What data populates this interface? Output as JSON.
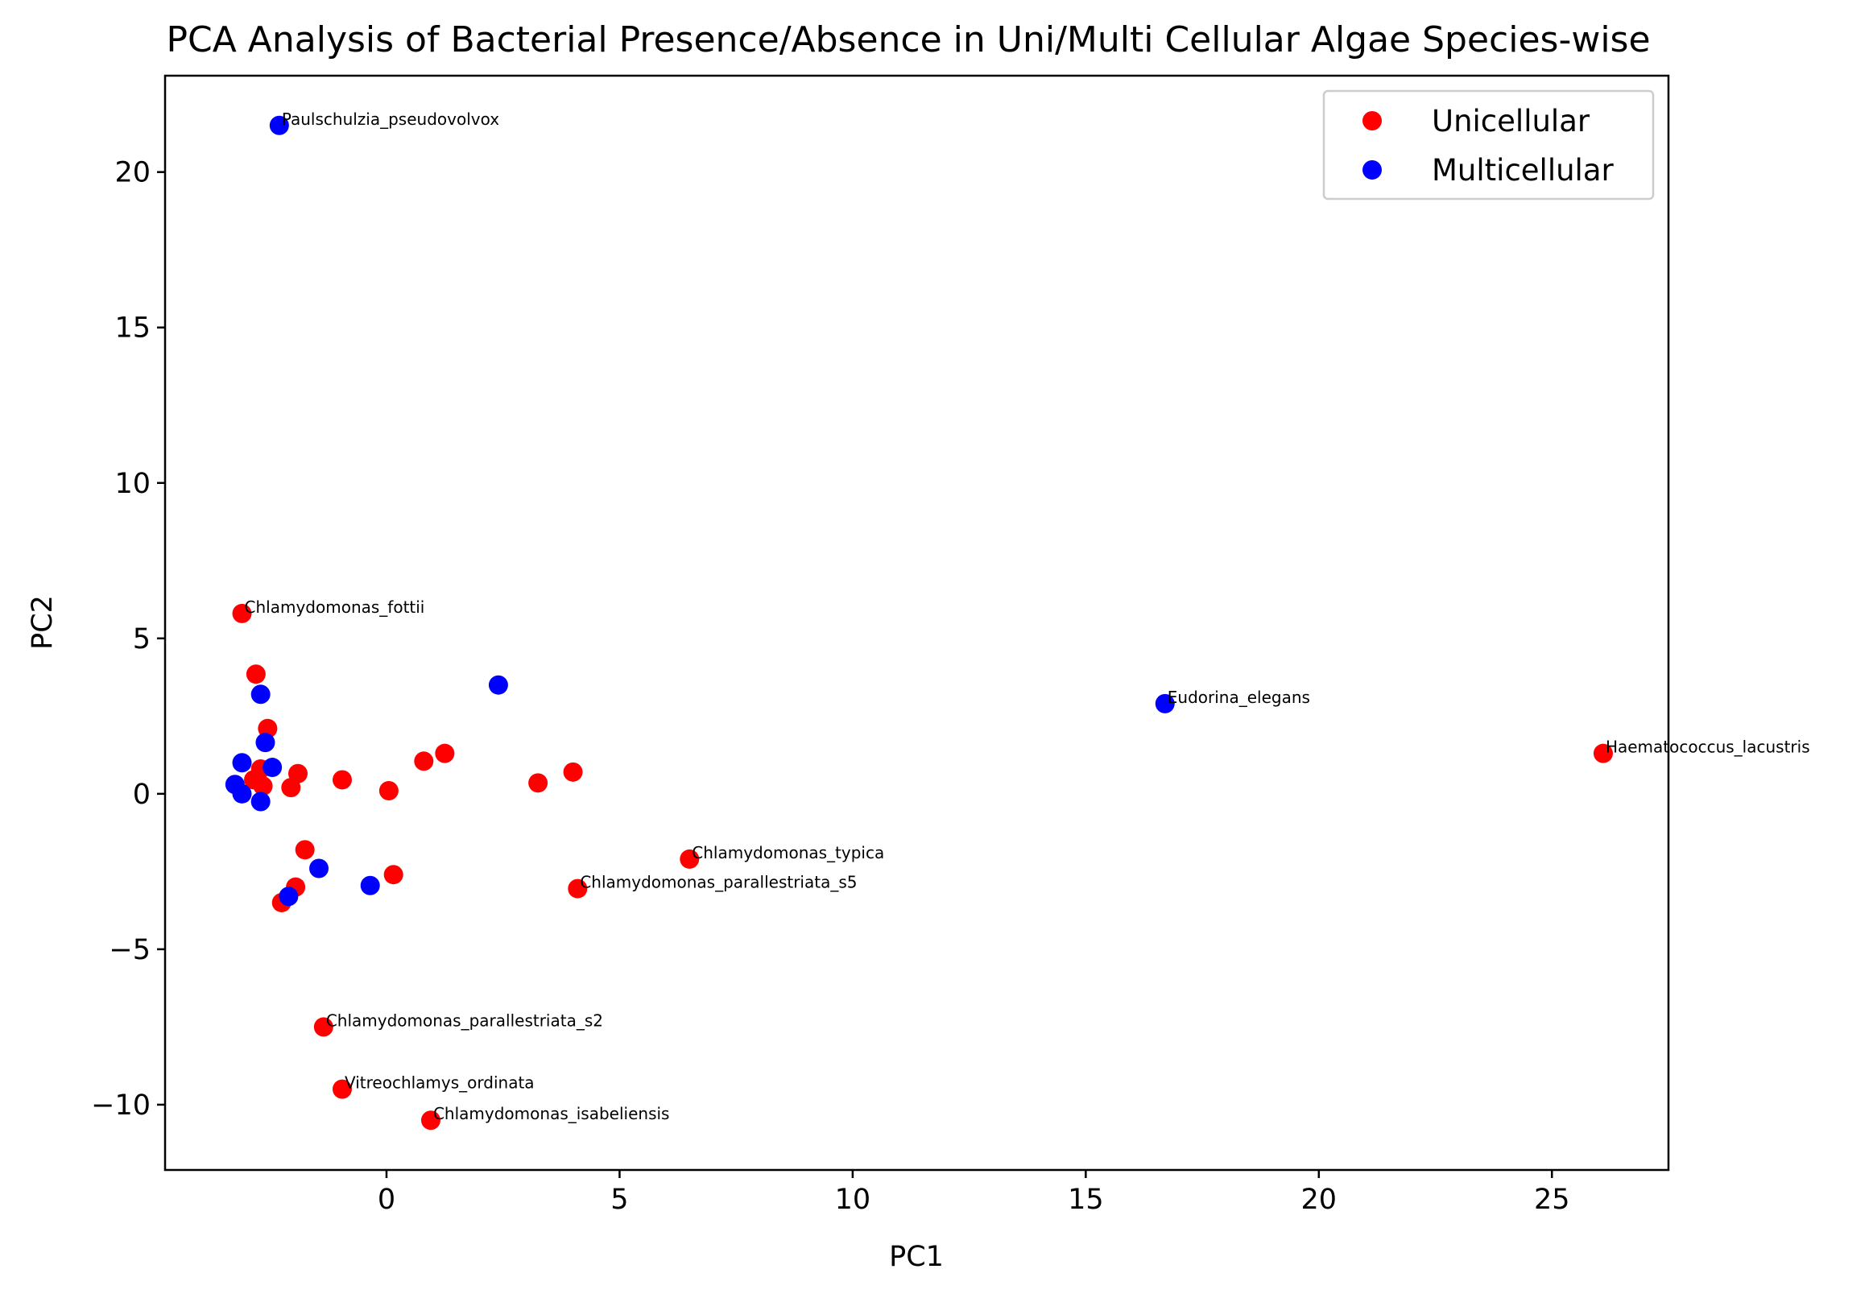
{
  "chart_data": {
    "type": "scatter",
    "title": "PCA Analysis of Bacterial Presence/Absence in Uni/Multi Cellular Algae Species-wise",
    "xlabel": "PC1",
    "ylabel": "PC2",
    "xlim": [
      -4.75,
      27.5
    ],
    "ylim": [
      -12.1,
      23.1
    ],
    "xticks": [
      0,
      5,
      10,
      15,
      20,
      25
    ],
    "yticks": [
      -10,
      -5,
      0,
      5,
      10,
      15,
      20
    ],
    "xtick_labels": [
      "0",
      "5",
      "10",
      "15",
      "20",
      "25"
    ],
    "ytick_labels": [
      "−10",
      "−5",
      "0",
      "5",
      "10",
      "15",
      "20"
    ],
    "grid": false,
    "legend_position": "top-right",
    "series": [
      {
        "name": "Unicellular",
        "color": "#ff0000",
        "points": [
          {
            "x": -3.1,
            "y": 5.8,
            "label": "Chlamydomonas_fottii"
          },
          {
            "x": -2.8,
            "y": 3.85
          },
          {
            "x": -2.55,
            "y": 2.1
          },
          {
            "x": -2.7,
            "y": 0.8
          },
          {
            "x": -2.85,
            "y": 0.45
          },
          {
            "x": -2.65,
            "y": 0.25
          },
          {
            "x": -2.05,
            "y": 0.2
          },
          {
            "x": -1.9,
            "y": 0.65
          },
          {
            "x": -0.95,
            "y": 0.45
          },
          {
            "x": 0.05,
            "y": 0.1
          },
          {
            "x": 0.8,
            "y": 1.05
          },
          {
            "x": 1.25,
            "y": 1.3
          },
          {
            "x": 3.25,
            "y": 0.35
          },
          {
            "x": 4.0,
            "y": 0.7
          },
          {
            "x": 26.1,
            "y": 1.3,
            "label": "Haematococcus_lacustris"
          },
          {
            "x": 6.5,
            "y": -2.1,
            "label": "Chlamydomonas_typica"
          },
          {
            "x": 4.1,
            "y": -3.05,
            "label": "Chlamydomonas_parallestriata_s5"
          },
          {
            "x": -1.75,
            "y": -1.8
          },
          {
            "x": -1.95,
            "y": -3.0
          },
          {
            "x": -2.25,
            "y": -3.5
          },
          {
            "x": 0.15,
            "y": -2.6
          },
          {
            "x": -1.35,
            "y": -7.5,
            "label": "Chlamydomonas_parallestriata_s2"
          },
          {
            "x": -0.95,
            "y": -9.5,
            "label": "Vitreochlamys_ordinata"
          },
          {
            "x": 0.95,
            "y": -10.5,
            "label": "Chlamydomonas_isabeliensis"
          }
        ]
      },
      {
        "name": "Multicellular",
        "color": "#0000ff",
        "points": [
          {
            "x": -2.3,
            "y": 21.5,
            "label": "Paulschulzia_pseudovolvox"
          },
          {
            "x": 16.7,
            "y": 2.9,
            "label": "Eudorina_elegans"
          },
          {
            "x": 2.4,
            "y": 3.5
          },
          {
            "x": -2.7,
            "y": 3.2
          },
          {
            "x": -2.6,
            "y": 1.65
          },
          {
            "x": -3.1,
            "y": 1.0
          },
          {
            "x": -2.45,
            "y": 0.85
          },
          {
            "x": -3.25,
            "y": 0.3
          },
          {
            "x": -3.1,
            "y": 0.0
          },
          {
            "x": -2.7,
            "y": -0.25
          },
          {
            "x": -1.45,
            "y": -2.4
          },
          {
            "x": -0.35,
            "y": -2.95
          },
          {
            "x": -2.1,
            "y": -3.3
          }
        ]
      }
    ]
  }
}
